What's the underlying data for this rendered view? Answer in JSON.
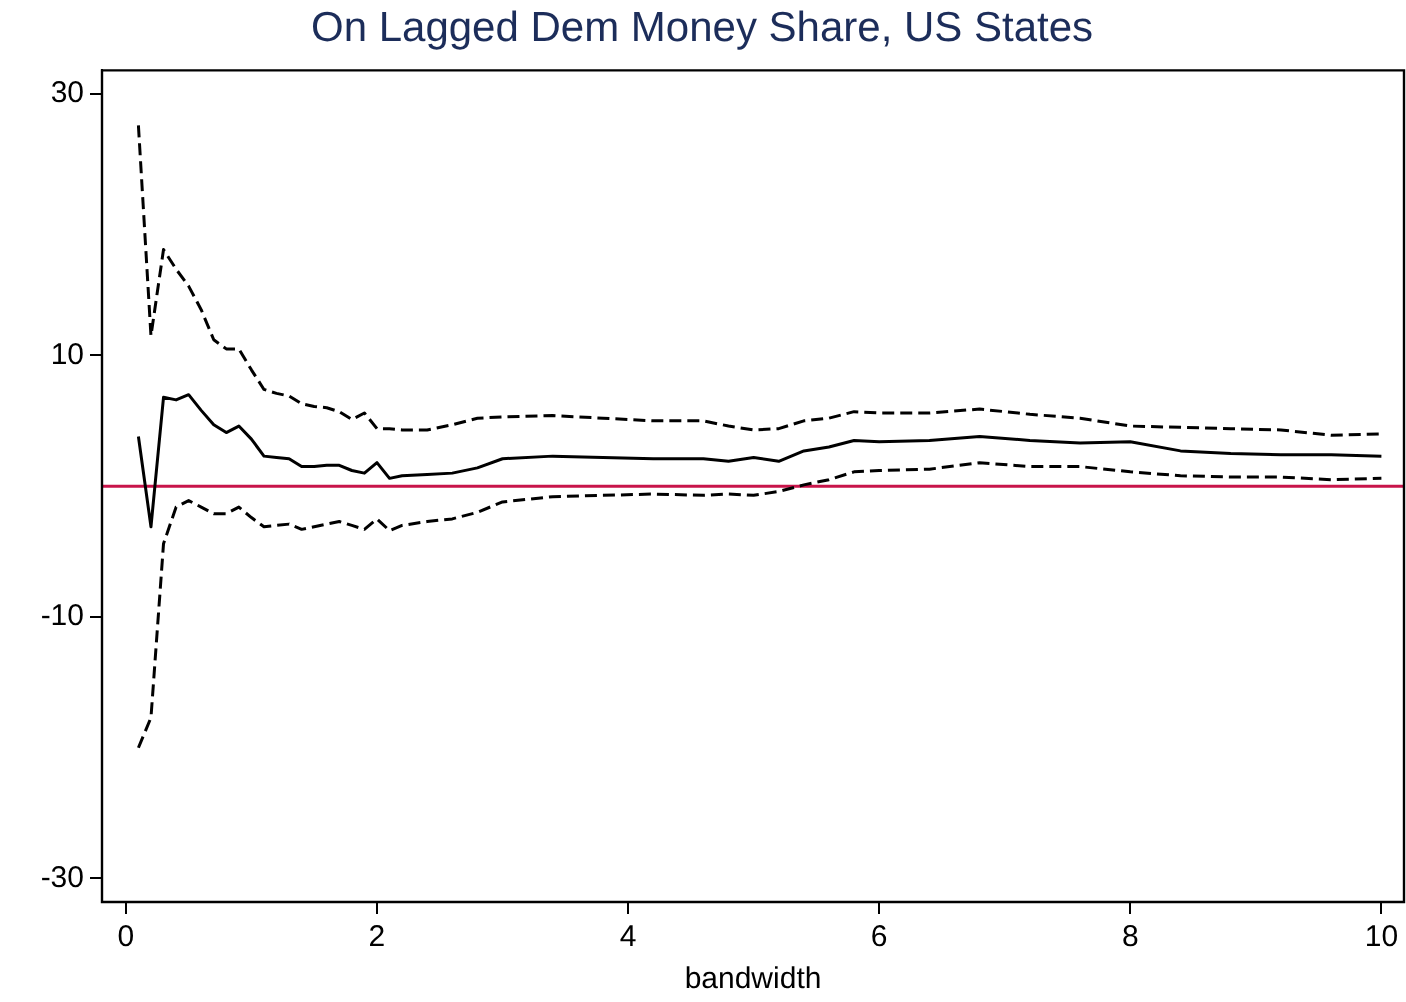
{
  "chart_data": {
    "type": "line",
    "title": "On Lagged Dem Money Share, US States",
    "xlabel": "bandwidth",
    "x": [
      0.1,
      0.2,
      0.3,
      0.4,
      0.5,
      0.6,
      0.7,
      0.8,
      0.9,
      1.0,
      1.1,
      1.2,
      1.3,
      1.4,
      1.5,
      1.6,
      1.7,
      1.8,
      1.9,
      2.0,
      2.1,
      2.2,
      2.4,
      2.6,
      2.8,
      3.0,
      3.4,
      3.8,
      4.2,
      4.6,
      4.8,
      5.0,
      5.2,
      5.4,
      5.6,
      5.8,
      6.0,
      6.4,
      6.8,
      7.2,
      7.6,
      8.0,
      8.4,
      8.8,
      9.2,
      9.6,
      10
    ],
    "series": [
      {
        "color": "#000000",
        "line_style": "solid",
        "values": [
          3.8,
          -3.1,
          6.8,
          6.6,
          7.0,
          5.8,
          4.7,
          4.1,
          4.6,
          3.6,
          2.3,
          2.2,
          2.1,
          1.5,
          1.5,
          1.6,
          1.6,
          1.2,
          1.0,
          1.8,
          0.6,
          0.8,
          0.9,
          1.0,
          1.4,
          2.1,
          2.3,
          2.2,
          2.1,
          2.1,
          1.9,
          2.2,
          1.9,
          2.7,
          3.0,
          3.5,
          3.4,
          3.5,
          3.8,
          3.5,
          3.3,
          3.4,
          2.7,
          2.5,
          2.4,
          2.4,
          2.3
        ]
      },
      {
        "color": "#000000",
        "line_style": "dashed",
        "values": [
          27.6,
          11.5,
          18.1,
          16.6,
          15.3,
          13.5,
          11.2,
          10.5,
          10.5,
          8.9,
          7.4,
          7.1,
          6.9,
          6.3,
          6.1,
          6.0,
          5.7,
          5.1,
          5.6,
          4.4,
          4.4,
          4.3,
          4.3,
          4.7,
          5.2,
          5.3,
          5.4,
          5.2,
          5.0,
          5.0,
          4.6,
          4.3,
          4.4,
          5.0,
          5.2,
          5.7,
          5.6,
          5.6,
          5.9,
          5.5,
          5.2,
          4.6,
          4.5,
          4.4,
          4.3,
          3.9,
          4.0
        ]
      },
      {
        "color": "#000000",
        "line_style": "dashed",
        "values": [
          -20.0,
          -17.7,
          -4.4,
          -1.6,
          -1.1,
          -1.6,
          -2.1,
          -2.1,
          -1.6,
          -2.4,
          -3.1,
          -3.0,
          -2.9,
          -3.3,
          -3.1,
          -2.9,
          -2.7,
          -3.0,
          -3.3,
          -2.5,
          -3.4,
          -3.0,
          -2.7,
          -2.5,
          -2.0,
          -1.2,
          -0.8,
          -0.7,
          -0.6,
          -0.7,
          -0.6,
          -0.7,
          -0.4,
          0.1,
          0.5,
          1.1,
          1.2,
          1.3,
          1.8,
          1.5,
          1.5,
          1.1,
          0.8,
          0.7,
          0.7,
          0.5,
          0.6
        ]
      }
    ],
    "xlim": [
      -0.19,
      10.18
    ],
    "xticks": [
      0,
      2,
      4,
      6,
      8,
      10
    ],
    "ylim": [
      -31.8,
      31.8
    ],
    "yticks": [
      -30,
      -10,
      10,
      30
    ],
    "ref_lines": [
      {
        "axis": "y",
        "value": 0,
        "color": "#c8144a"
      }
    ],
    "grid": false,
    "legend": false,
    "marker": "none"
  }
}
